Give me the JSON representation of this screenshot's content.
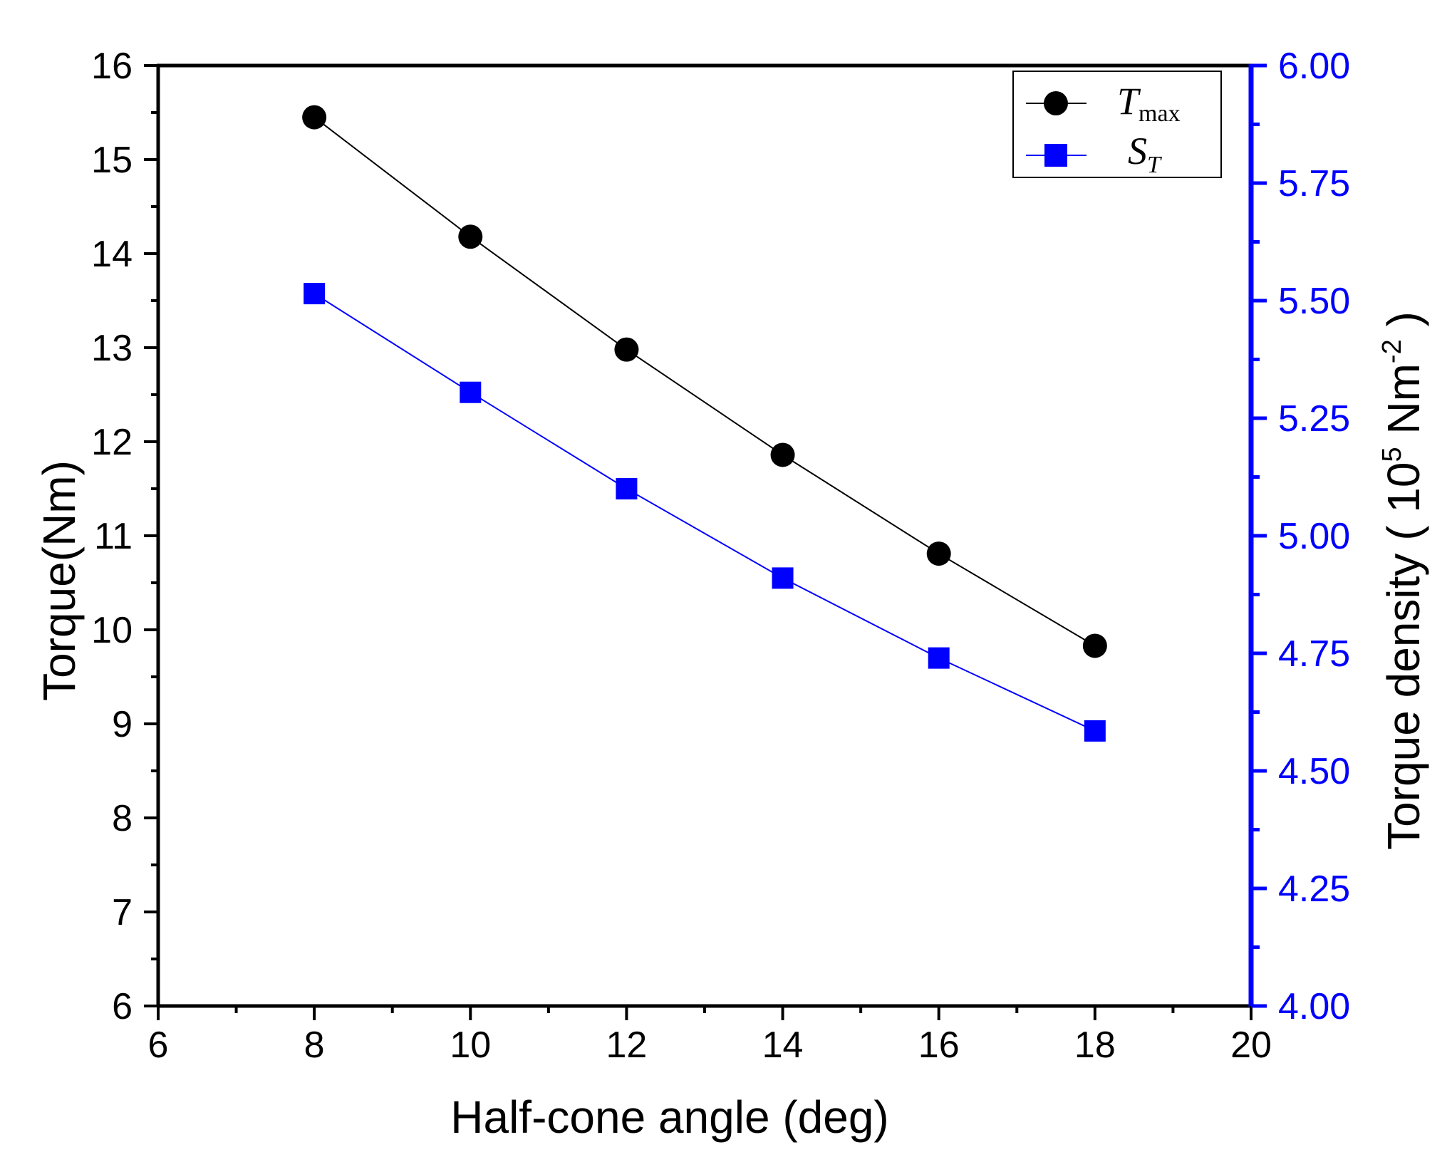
{
  "chart_data": {
    "type": "line",
    "title": "",
    "xlabel": "Half-cone angle (deg)",
    "ylabel_left": "Torque(Nm)",
    "ylabel_right": {
      "prefix": "Torque density ( 10",
      "exp1": "5",
      "mid": " Nm",
      "exp2": "-2",
      "suffix": " )"
    },
    "x": [
      8,
      10,
      12,
      14,
      16,
      18
    ],
    "xlim": [
      6,
      20
    ],
    "xticks": [
      "6",
      "8",
      "10",
      "12",
      "14",
      "16",
      "18",
      "20"
    ],
    "ylim_left": [
      6,
      16
    ],
    "yticks_left": [
      "6",
      "7",
      "8",
      "9",
      "10",
      "11",
      "12",
      "13",
      "14",
      "15",
      "16"
    ],
    "ylim_right": [
      4.0,
      6.0
    ],
    "yticks_right": [
      "4.00",
      "4.25",
      "4.50",
      "4.75",
      "5.00",
      "5.25",
      "5.50",
      "5.75",
      "6.00"
    ],
    "grid": false,
    "legend_position": "top-right",
    "series": [
      {
        "name": "T",
        "subscript": "max",
        "axis": "left",
        "marker": "circle",
        "color": "#000000",
        "values": [
          15.45,
          14.18,
          12.98,
          11.86,
          10.81,
          9.83
        ]
      },
      {
        "name": "S",
        "subscript": "T",
        "axis": "right",
        "marker": "square",
        "color": "#0000ff",
        "values": [
          5.515,
          5.305,
          5.1,
          4.91,
          4.74,
          4.585
        ]
      }
    ],
    "colors": {
      "left_axis": "#000000",
      "right_axis": "#0000ff"
    }
  }
}
